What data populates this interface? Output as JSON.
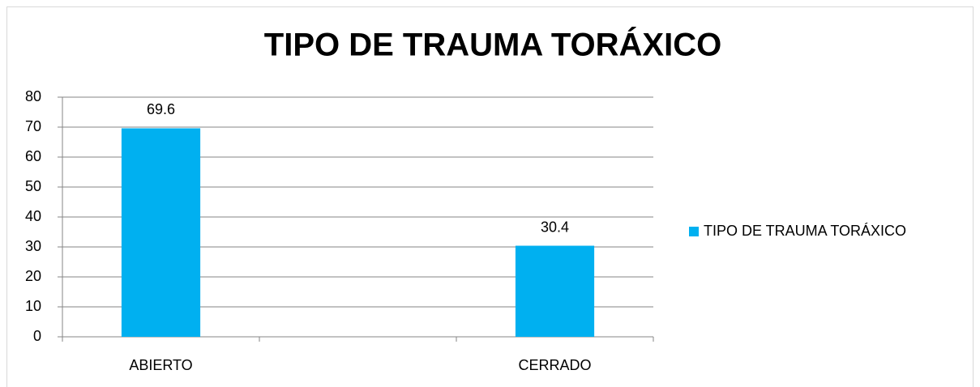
{
  "chart_data": {
    "type": "bar",
    "title": "TIPO DE TRAUMA TORÁXICO",
    "categories": [
      "ABIERTO",
      null,
      "CERRADO"
    ],
    "series": [
      {
        "name": "TIPO DE TRAUMA TORÁXICO",
        "color": "#00b0f0",
        "values": [
          69.6,
          null,
          30.4
        ]
      }
    ],
    "ylim": [
      0,
      80
    ],
    "yticks": [
      0,
      10,
      20,
      30,
      40,
      50,
      60,
      70,
      80
    ],
    "grid": true,
    "legend": "right"
  }
}
